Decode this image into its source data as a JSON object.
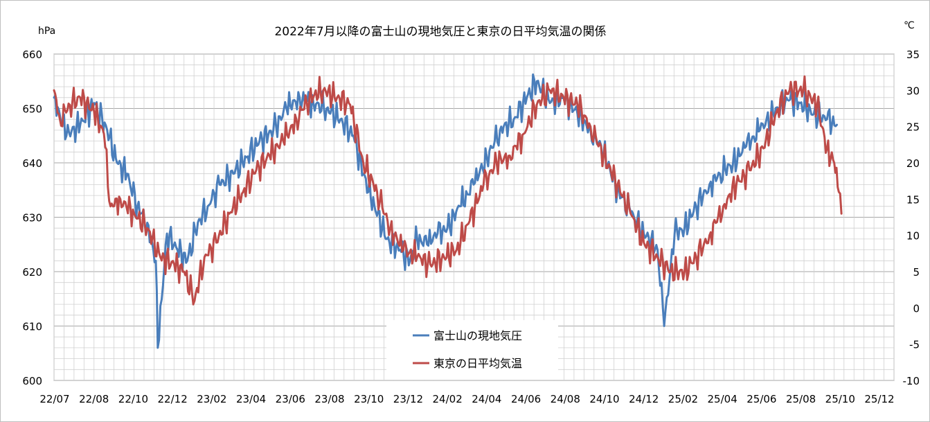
{
  "chart_data": {
    "type": "line",
    "title": "2022年7月以降の富士山の現地気圧と東京の日平均気温の関係",
    "y_left_unit": "hPa",
    "y_right_unit": "℃",
    "y_left_range": [
      600,
      660
    ],
    "y_left_ticks": [
      "600",
      "610",
      "620",
      "630",
      "640",
      "650",
      "660"
    ],
    "y_right_range": [
      -10,
      35
    ],
    "y_right_ticks": [
      "-10",
      "-5",
      "0",
      "5",
      "10",
      "15",
      "20",
      "25",
      "30",
      "35"
    ],
    "x_range": [
      "2022-07-01",
      "2025-12-31"
    ],
    "x_tick_labels": [
      "22/07",
      "22/08",
      "22/10",
      "22/12",
      "23/02",
      "23/04",
      "23/06",
      "23/08",
      "23/10",
      "23/12",
      "24/02",
      "24/04",
      "24/06",
      "24/08",
      "24/10",
      "24/12",
      "25/02",
      "25/04",
      "25/06",
      "25/08",
      "25/10",
      "25/12"
    ],
    "grid": "on",
    "legend_position": "bottom-center",
    "series": [
      {
        "name": "富士山の現地気圧",
        "axis": "left",
        "color": "#4a7ebb",
        "dates": [
          "2022-07-01",
          "2022-07-20",
          "2022-08-10",
          "2022-08-31",
          "2022-09-20",
          "2022-10-05",
          "2022-10-20",
          "2022-11-05",
          "2022-11-20",
          "2022-12-03",
          "2022-12-06",
          "2022-12-20",
          "2023-01-05",
          "2023-01-20",
          "2023-02-05",
          "2023-02-20",
          "2023-03-10",
          "2023-03-31",
          "2023-04-20",
          "2023-05-10",
          "2023-05-31",
          "2023-06-20",
          "2023-07-10",
          "2023-07-31",
          "2023-08-20",
          "2023-09-10",
          "2023-09-30",
          "2023-10-15",
          "2023-11-01",
          "2023-11-20",
          "2023-12-10",
          "2023-12-25",
          "2024-01-05",
          "2024-01-20",
          "2024-02-05",
          "2024-02-20",
          "2024-03-10",
          "2024-03-31",
          "2024-04-20",
          "2024-05-10",
          "2024-05-31",
          "2024-06-20",
          "2024-07-05",
          "2024-07-25",
          "2024-08-15",
          "2024-09-05",
          "2024-09-25",
          "2024-10-15",
          "2024-11-05",
          "2024-11-25",
          "2024-12-15",
          "2025-01-05",
          "2025-01-15",
          "2025-01-31",
          "2025-02-15",
          "2025-03-05",
          "2025-03-25",
          "2025-04-10",
          "2025-04-30",
          "2025-05-20",
          "2025-06-10",
          "2025-06-30",
          "2025-07-20",
          "2025-08-10",
          "2025-08-31",
          "2025-09-20",
          "2025-10-05"
        ],
        "values": [
          652,
          645,
          647,
          651,
          646,
          640,
          638,
          632,
          629,
          622,
          606,
          627,
          624,
          622,
          629,
          632,
          636,
          638,
          641,
          644,
          646,
          650,
          652,
          651,
          650,
          648,
          645,
          638,
          632,
          626,
          624,
          622,
          626,
          625,
          627,
          628,
          632,
          636,
          641,
          646,
          648,
          652,
          655,
          651,
          652,
          649,
          646,
          642,
          635,
          631,
          627,
          624,
          610,
          627,
          628,
          632,
          636,
          638,
          640,
          643,
          646,
          649,
          652,
          651,
          649,
          648,
          647
        ]
      },
      {
        "name": "東京の日平均気温",
        "axis": "right",
        "color": "#be4b48",
        "dates": [
          "2022-07-01",
          "2022-07-10",
          "2022-07-25",
          "2022-08-10",
          "2022-08-31",
          "2022-09-15",
          "2022-09-25",
          "2022-10-10",
          "2022-10-31",
          "2022-11-20",
          "2022-12-10",
          "2022-12-31",
          "2023-01-15",
          "2023-01-31",
          "2023-02-15",
          "2023-03-05",
          "2023-03-25",
          "2023-04-15",
          "2023-05-05",
          "2023-05-25",
          "2023-06-15",
          "2023-07-05",
          "2023-07-25",
          "2023-08-15",
          "2023-09-05",
          "2023-09-25",
          "2023-10-15",
          "2023-11-05",
          "2023-11-25",
          "2023-12-15",
          "2024-01-05",
          "2024-01-25",
          "2024-02-15",
          "2024-03-05",
          "2024-03-25",
          "2024-04-15",
          "2024-05-05",
          "2024-05-25",
          "2024-06-15",
          "2024-07-05",
          "2024-07-25",
          "2024-08-15",
          "2024-09-05",
          "2024-09-25",
          "2024-10-15",
          "2024-11-05",
          "2024-11-25",
          "2024-12-15",
          "2025-01-05",
          "2025-01-25",
          "2025-02-15",
          "2025-03-05",
          "2025-03-25",
          "2025-04-15",
          "2025-05-05",
          "2025-05-25",
          "2025-06-15",
          "2025-07-05",
          "2025-07-25",
          "2025-08-15",
          "2025-09-05",
          "2025-09-20",
          "2025-10-01",
          "2025-10-08",
          "2025-10-12"
        ],
        "values": [
          30,
          26,
          28,
          29,
          27,
          24,
          14,
          15,
          13,
          11,
          7,
          6,
          5,
          1,
          7,
          9,
          13,
          16,
          19,
          21,
          23,
          26,
          29,
          30,
          29,
          28,
          20,
          16,
          11,
          8,
          7,
          6,
          7,
          8,
          12,
          17,
          20,
          21,
          24,
          28,
          30,
          29,
          28,
          25,
          21,
          17,
          13,
          9,
          7,
          5,
          5,
          7,
          10,
          14,
          17,
          19,
          22,
          27,
          30,
          30,
          28,
          22,
          20,
          16,
          13
        ]
      }
    ]
  }
}
